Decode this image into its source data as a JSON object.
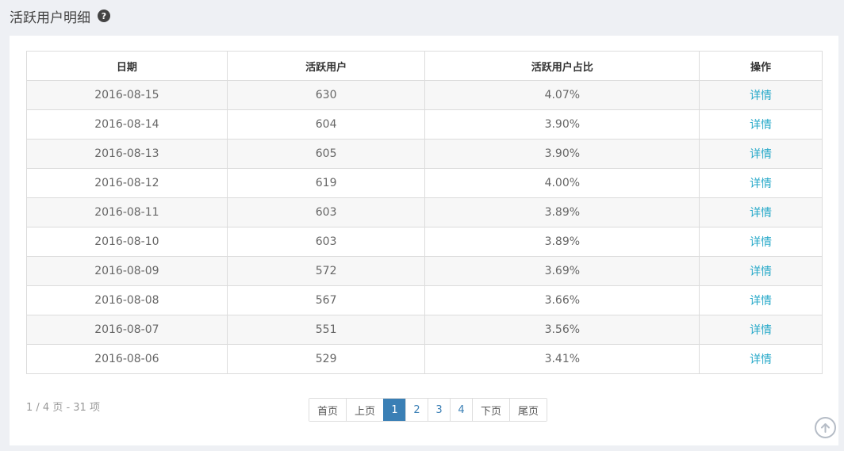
{
  "header": {
    "title": "活跃用户明细",
    "help_icon": "question-circle-icon"
  },
  "table": {
    "columns": [
      "日期",
      "活跃用户",
      "活跃用户占比",
      "操作"
    ],
    "rows": [
      {
        "date": "2016-08-15",
        "users": "630",
        "ratio": "4.07%",
        "action": "详情"
      },
      {
        "date": "2016-08-14",
        "users": "604",
        "ratio": "3.90%",
        "action": "详情"
      },
      {
        "date": "2016-08-13",
        "users": "605",
        "ratio": "3.90%",
        "action": "详情"
      },
      {
        "date": "2016-08-12",
        "users": "619",
        "ratio": "4.00%",
        "action": "详情"
      },
      {
        "date": "2016-08-11",
        "users": "603",
        "ratio": "3.89%",
        "action": "详情"
      },
      {
        "date": "2016-08-10",
        "users": "603",
        "ratio": "3.89%",
        "action": "详情"
      },
      {
        "date": "2016-08-09",
        "users": "572",
        "ratio": "3.69%",
        "action": "详情"
      },
      {
        "date": "2016-08-08",
        "users": "567",
        "ratio": "3.66%",
        "action": "详情"
      },
      {
        "date": "2016-08-07",
        "users": "551",
        "ratio": "3.56%",
        "action": "详情"
      },
      {
        "date": "2016-08-06",
        "users": "529",
        "ratio": "3.41%",
        "action": "详情"
      }
    ]
  },
  "pagination": {
    "info": "1 / 4 页 - 31 项",
    "first": "首页",
    "prev": "上页",
    "pages": [
      "1",
      "2",
      "3",
      "4"
    ],
    "current": "1",
    "next": "下页",
    "last": "尾页"
  },
  "scroll_top_icon": "arrow-up-circle-icon",
  "colors": {
    "link": "#27a9c9",
    "active_page": "#3a7fb5"
  }
}
